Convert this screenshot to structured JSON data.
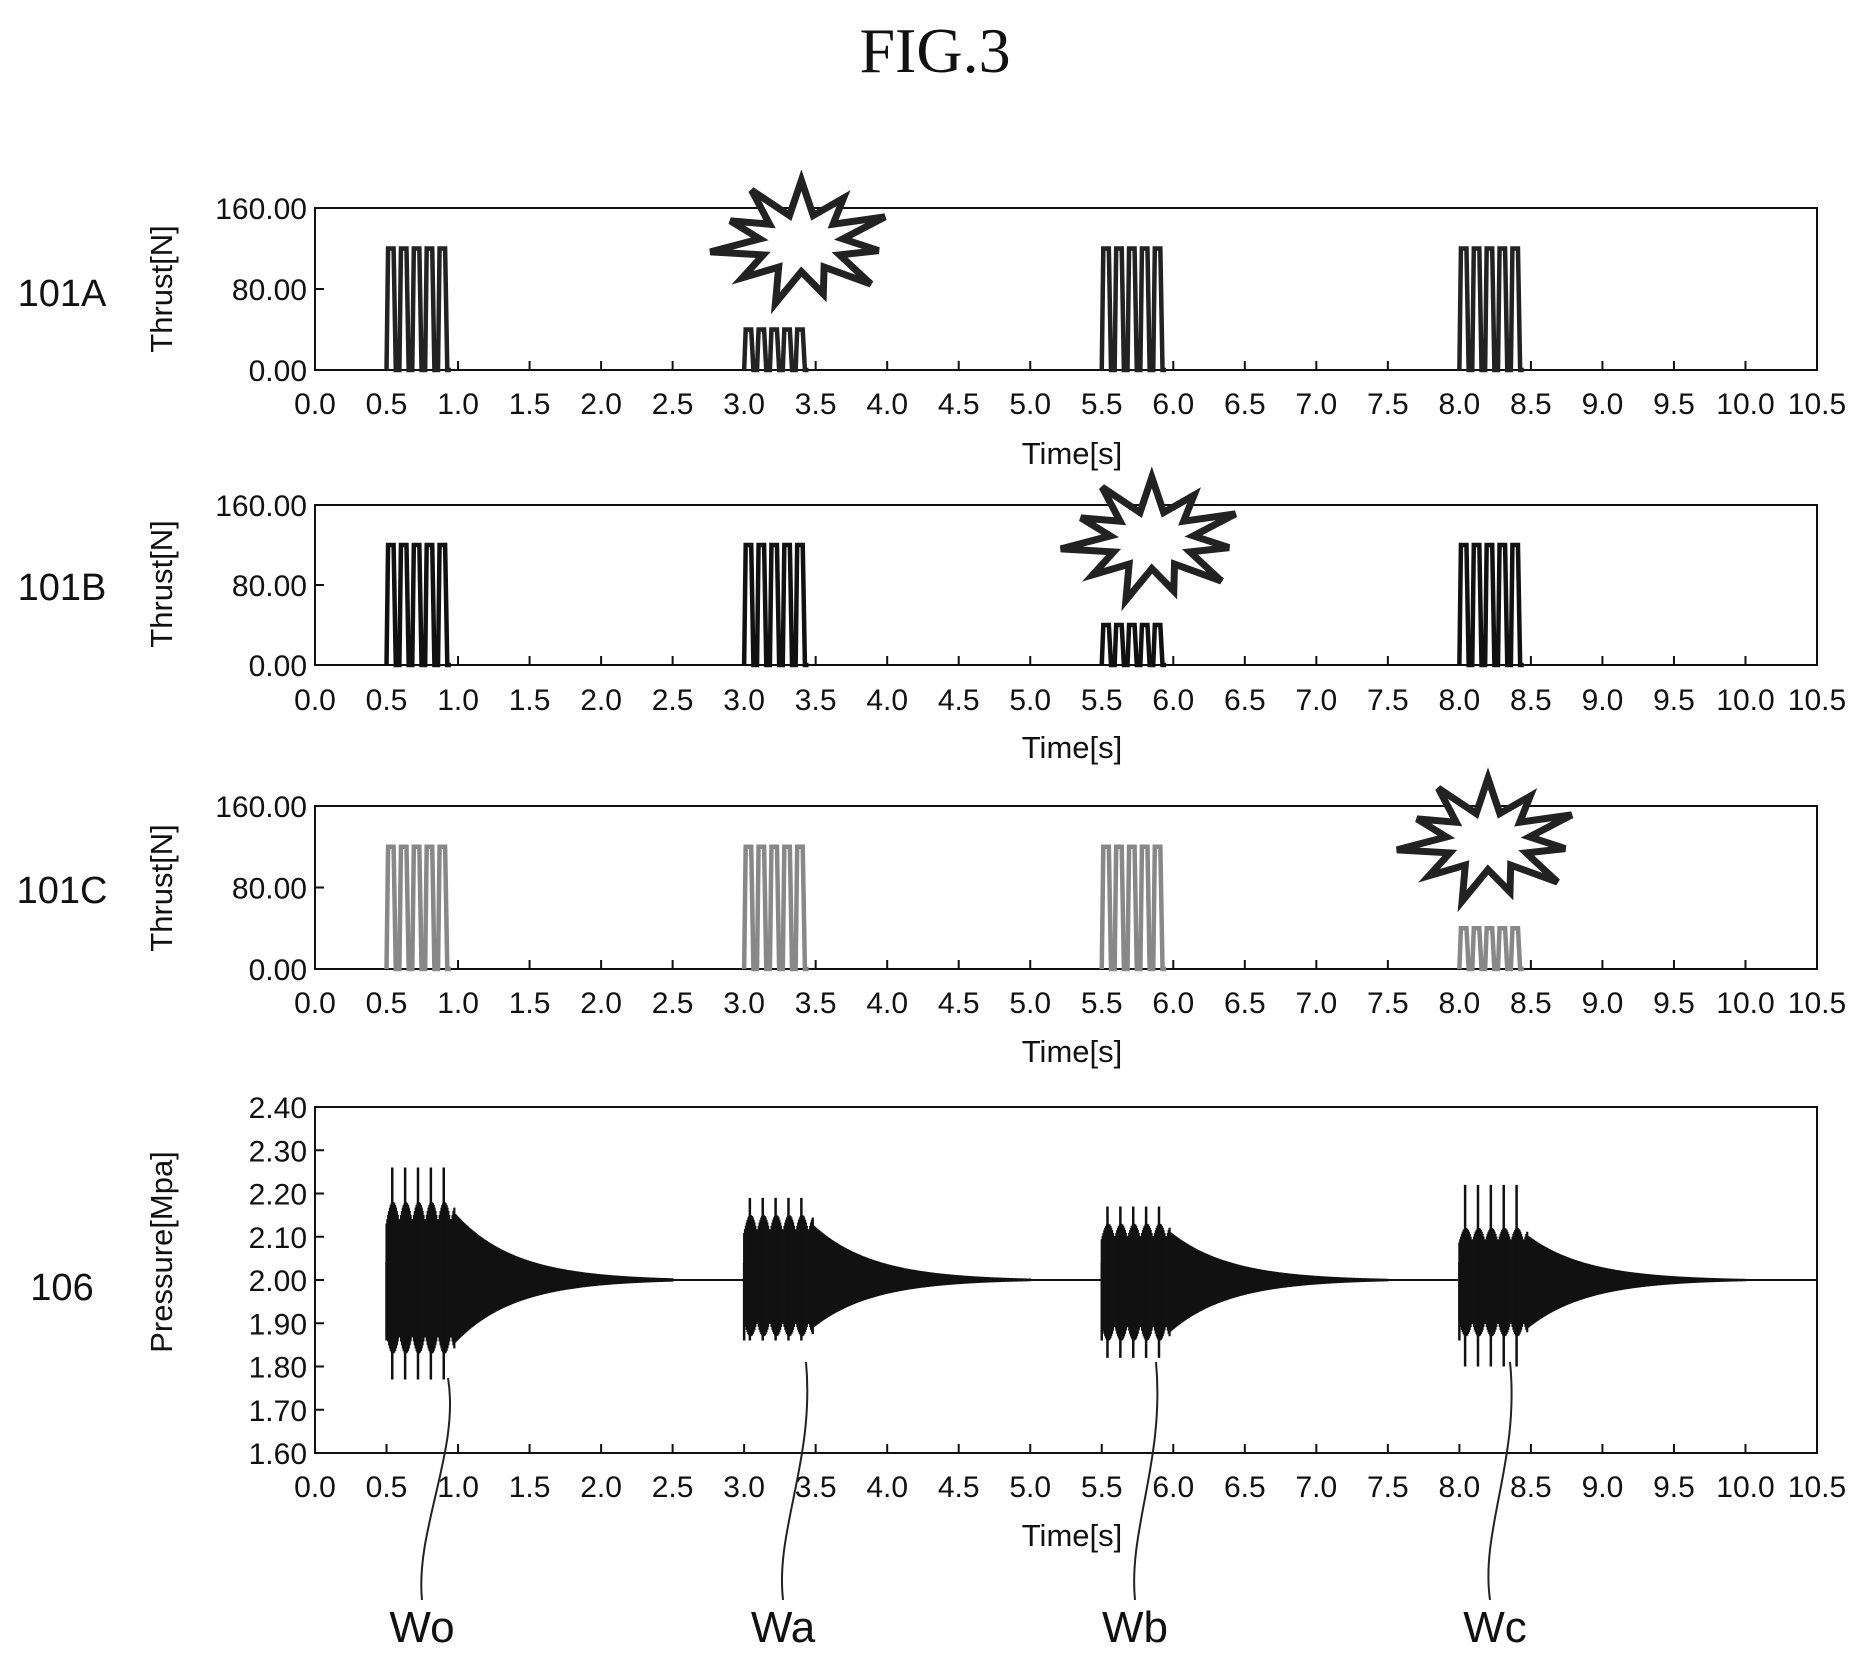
{
  "figure": {
    "title": "FIG.3",
    "wave_labels": [
      "Wo",
      "Wa",
      "Wb",
      "Wc"
    ]
  },
  "chart_data": [
    {
      "type": "line",
      "id": "101A",
      "ylabel": "Thrust[N]",
      "xlabel": "Time[s]",
      "xlim": [
        0,
        10.5
      ],
      "ylim": [
        0,
        160
      ],
      "x_ticks": [
        "0.0",
        "0.5",
        "1.0",
        "1.5",
        "2.0",
        "2.5",
        "3.0",
        "3.5",
        "4.0",
        "4.5",
        "5.0",
        "5.5",
        "6.0",
        "6.5",
        "7.0",
        "7.5",
        "8.0",
        "8.5",
        "9.0",
        "9.5",
        "10.0",
        "10.5"
      ],
      "y_ticks": [
        "0.00",
        "80.00",
        "160.00"
      ],
      "pulse_groups": [
        {
          "start": 0.5,
          "end": 0.95,
          "pulses": 5,
          "level": 120
        },
        {
          "start": 3.0,
          "end": 3.45,
          "pulses": 5,
          "level": 40
        },
        {
          "start": 5.5,
          "end": 5.95,
          "pulses": 5,
          "level": 120
        },
        {
          "start": 8.0,
          "end": 8.45,
          "pulses": 5,
          "level": 120
        }
      ],
      "failure_marker_x": 3.4,
      "line_color": "#222222"
    },
    {
      "type": "line",
      "id": "101B",
      "ylabel": "Thrust[N]",
      "xlabel": "Time[s]",
      "xlim": [
        0,
        10.5
      ],
      "ylim": [
        0,
        160
      ],
      "x_ticks": [
        "0.0",
        "0.5",
        "1.0",
        "1.5",
        "2.0",
        "2.5",
        "3.0",
        "3.5",
        "4.0",
        "4.5",
        "5.0",
        "5.5",
        "6.0",
        "6.5",
        "7.0",
        "7.5",
        "8.0",
        "8.5",
        "9.0",
        "9.5",
        "10.0",
        "10.5"
      ],
      "y_ticks": [
        "0.00",
        "80.00",
        "160.00"
      ],
      "pulse_groups": [
        {
          "start": 0.5,
          "end": 0.95,
          "pulses": 5,
          "level": 120
        },
        {
          "start": 3.0,
          "end": 3.45,
          "pulses": 5,
          "level": 120
        },
        {
          "start": 5.5,
          "end": 5.95,
          "pulses": 5,
          "level": 40
        },
        {
          "start": 8.0,
          "end": 8.45,
          "pulses": 5,
          "level": 120
        }
      ],
      "failure_marker_x": 5.85,
      "line_color": "#111111"
    },
    {
      "type": "line",
      "id": "101C",
      "ylabel": "Thrust[N]",
      "xlabel": "Time[s]",
      "xlim": [
        0,
        10.5
      ],
      "ylim": [
        0,
        160
      ],
      "x_ticks": [
        "0.0",
        "0.5",
        "1.0",
        "1.5",
        "2.0",
        "2.5",
        "3.0",
        "3.5",
        "4.0",
        "4.5",
        "5.0",
        "5.5",
        "6.0",
        "6.5",
        "7.0",
        "7.5",
        "8.0",
        "8.5",
        "9.0",
        "9.5",
        "10.0",
        "10.5"
      ],
      "y_ticks": [
        "0.00",
        "80.00",
        "160.00"
      ],
      "pulse_groups": [
        {
          "start": 0.5,
          "end": 0.95,
          "pulses": 5,
          "level": 120
        },
        {
          "start": 3.0,
          "end": 3.45,
          "pulses": 5,
          "level": 120
        },
        {
          "start": 5.5,
          "end": 5.95,
          "pulses": 5,
          "level": 120
        },
        {
          "start": 8.0,
          "end": 8.45,
          "pulses": 5,
          "level": 40
        }
      ],
      "failure_marker_x": 8.2,
      "line_color": "#888888"
    },
    {
      "type": "line",
      "id": "106",
      "ylabel": "Pressure[Mpa]",
      "xlabel": "Time[s]",
      "xlim": [
        0,
        10.5
      ],
      "ylim": [
        1.6,
        2.4
      ],
      "baseline": 2.0,
      "x_ticks": [
        "0.0",
        "0.5",
        "1.0",
        "1.5",
        "2.0",
        "2.5",
        "3.0",
        "3.5",
        "4.0",
        "4.5",
        "5.0",
        "5.5",
        "6.0",
        "6.5",
        "7.0",
        "7.5",
        "8.0",
        "8.5",
        "9.0",
        "9.5",
        "10.0",
        "10.5"
      ],
      "y_ticks": [
        "1.60",
        "1.70",
        "1.80",
        "1.90",
        "2.00",
        "2.10",
        "2.20",
        "2.30",
        "2.40"
      ],
      "waves": [
        {
          "start": 0.5,
          "spike_top": 2.26,
          "spike_bottom": 1.77,
          "burst_top": 2.18,
          "burst_bottom": 1.83,
          "decay_end": 2.5
        },
        {
          "start": 3.0,
          "spike_top": 2.19,
          "spike_bottom": 1.86,
          "burst_top": 2.15,
          "burst_bottom": 1.87,
          "decay_end": 5.0
        },
        {
          "start": 5.5,
          "spike_top": 2.17,
          "spike_bottom": 1.82,
          "burst_top": 2.13,
          "burst_bottom": 1.86,
          "decay_end": 7.5
        },
        {
          "start": 8.0,
          "spike_top": 2.22,
          "spike_bottom": 1.8,
          "burst_top": 2.12,
          "burst_bottom": 1.87,
          "decay_end": 10.0
        }
      ],
      "line_color": "#111111"
    }
  ]
}
